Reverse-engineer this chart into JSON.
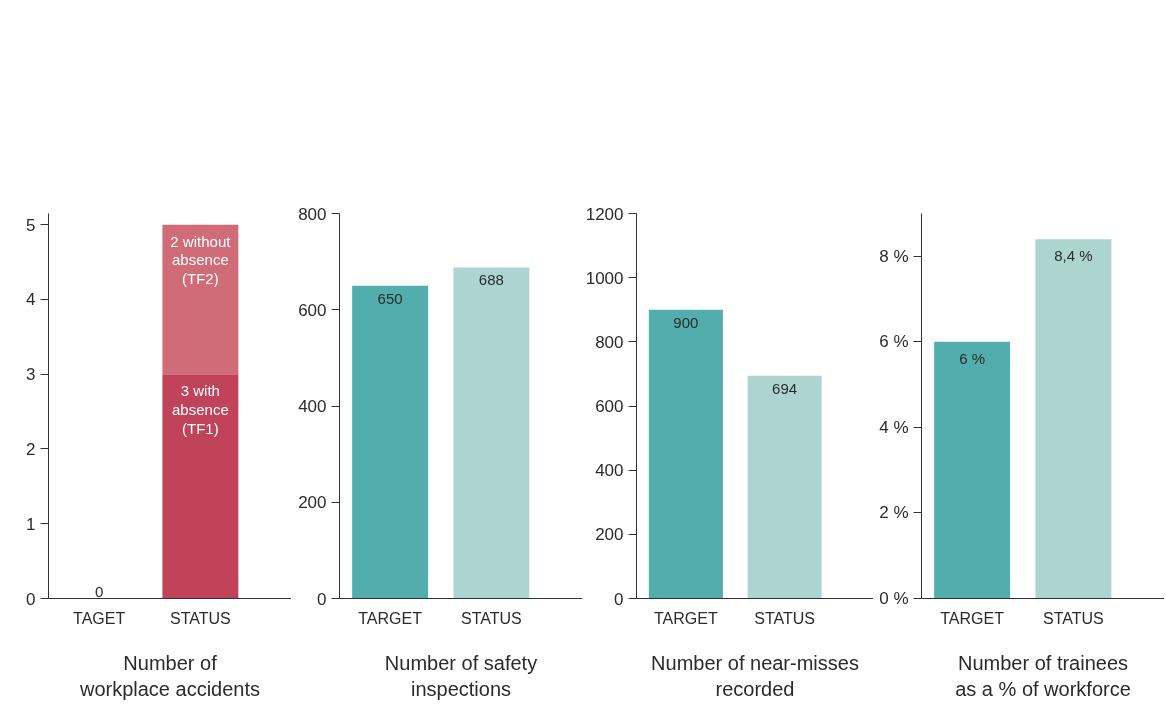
{
  "chart_data": [
    {
      "type": "bar",
      "xlabel": "Number of\nworkplace accidents",
      "categories": [
        "TAGET",
        "STATUS"
      ],
      "stacked": true,
      "ylim": [
        0,
        5.15
      ],
      "yticks": [
        0,
        1,
        2,
        3,
        4,
        5
      ],
      "grid": false,
      "series": [
        {
          "color": "#c0435a",
          "values": [
            0,
            3
          ],
          "value_labels": [
            "0",
            "3 with\nabsence\n(TF1)"
          ]
        },
        {
          "color": "#d06b78",
          "values": [
            0,
            2
          ],
          "value_labels": [
            null,
            "2 without\nabsence\n(TF2)"
          ]
        }
      ]
    },
    {
      "type": "bar",
      "xlabel": "Number of safety\ninspections",
      "categories": [
        "TARGET",
        "STATUS"
      ],
      "ylim": [
        0,
        800
      ],
      "yticks": [
        0,
        200,
        400,
        600,
        800
      ],
      "grid": false,
      "data_labels": true,
      "values": [
        650,
        688
      ],
      "colors": [
        "#52adad",
        "#acd5d2"
      ]
    },
    {
      "type": "bar",
      "xlabel": "Number of near-misses\nrecorded",
      "categories": [
        "TARGET",
        "STATUS"
      ],
      "ylim": [
        0,
        1200
      ],
      "yticks": [
        0,
        200,
        400,
        600,
        800,
        1000,
        1200
      ],
      "grid": false,
      "data_labels": true,
      "values": [
        900,
        694
      ],
      "colors": [
        "#52adad",
        "#acd5d2"
      ]
    },
    {
      "type": "bar",
      "xlabel": "Number of trainees\nas a % of workforce",
      "categories": [
        "TARGET",
        "STATUS"
      ],
      "ylim": [
        0,
        9
      ],
      "yticks": [
        {
          "value": 0,
          "label": "0 %"
        },
        {
          "value": 2,
          "label": "2 %"
        },
        {
          "value": 4,
          "label": "4 %"
        },
        {
          "value": 6,
          "label": "6 %"
        },
        {
          "value": 8,
          "label": "8 %"
        }
      ],
      "grid": false,
      "values": [
        6,
        8.4
      ],
      "value_labels": [
        "6 %",
        "8,4 %"
      ],
      "colors": [
        "#52adad",
        "#acd5d2"
      ]
    }
  ]
}
